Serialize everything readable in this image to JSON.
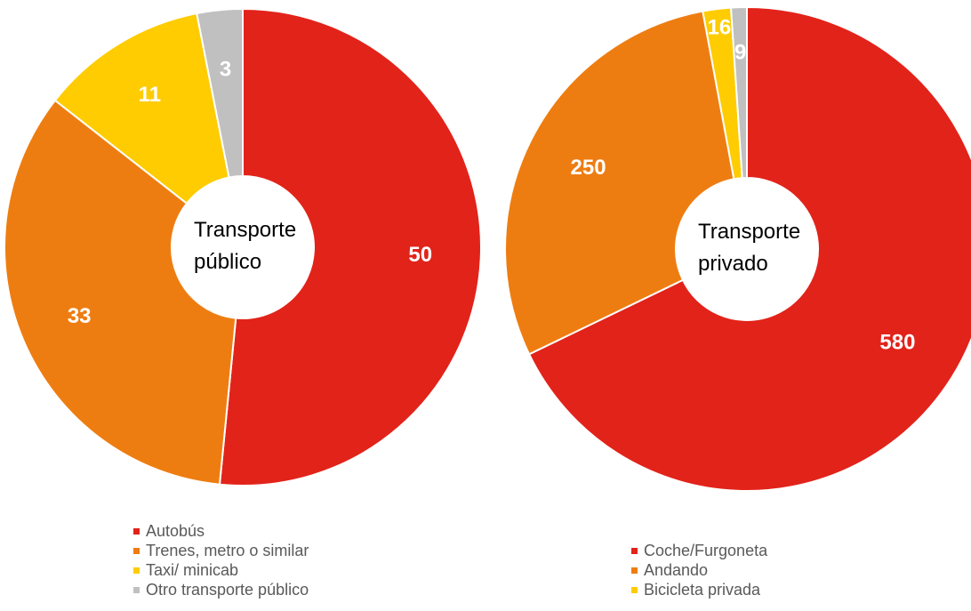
{
  "chart_data": [
    {
      "type": "donut",
      "title": "Transporte público",
      "categories": [
        "Autobús",
        "Trenes, metro o similar",
        "Taxi/ minicab",
        "Otro transporte público"
      ],
      "values": [
        50,
        33,
        11,
        3
      ],
      "colors": [
        "#e2231a",
        "#ee7d11",
        "#fecc00",
        "#c0c0c0"
      ]
    },
    {
      "type": "donut",
      "title": "Transporte privado",
      "categories": [
        "Coche/Furgoneta",
        "Andando",
        "Bicicleta privada",
        null
      ],
      "values": [
        580,
        250,
        16,
        9
      ],
      "colors": [
        "#e2231a",
        "#ee7d11",
        "#fecc00",
        "#c0c0c0"
      ]
    }
  ]
}
